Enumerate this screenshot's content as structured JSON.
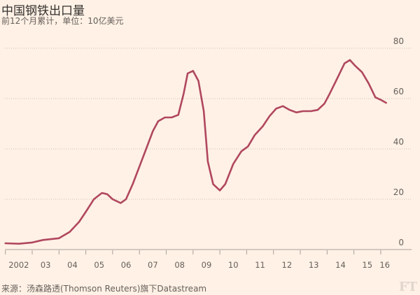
{
  "chart_data": {
    "type": "line",
    "title": "中国钢铁出口量",
    "subtitle": "前12个月累计，单位：10亿美元",
    "source": "来源：汤森路透(Thomson Reuters)旗下Datastream",
    "logo": "FT",
    "xlabel": "",
    "ylabel": "",
    "ylim": [
      0,
      80
    ],
    "xlim": [
      2002,
      2016.4
    ],
    "yticks": [
      0,
      20,
      40,
      60,
      80
    ],
    "xticks": [
      {
        "year": 2002.5,
        "label": "2002"
      },
      {
        "year": 2003.5,
        "label": "03"
      },
      {
        "year": 2004.5,
        "label": "04"
      },
      {
        "year": 2005.5,
        "label": "05"
      },
      {
        "year": 2006.5,
        "label": "06"
      },
      {
        "year": 2007.5,
        "label": "07"
      },
      {
        "year": 2008.5,
        "label": "08"
      },
      {
        "year": 2009.5,
        "label": "09"
      },
      {
        "year": 2010.5,
        "label": "10"
      },
      {
        "year": 2011.5,
        "label": "11"
      },
      {
        "year": 2012.5,
        "label": "12"
      },
      {
        "year": 2013.5,
        "label": "13"
      },
      {
        "year": 2014.5,
        "label": "14"
      },
      {
        "year": 2015.5,
        "label": "15"
      },
      {
        "year": 2016.15,
        "label": "16"
      }
    ],
    "grid": true,
    "color": "#b0475e",
    "series": [
      {
        "name": "钢铁出口量",
        "x": [
          2002.0,
          2002.5,
          2003.0,
          2003.4,
          2004.0,
          2004.4,
          2004.75,
          2005.0,
          2005.3,
          2005.6,
          2005.8,
          2006.0,
          2006.3,
          2006.5,
          2006.75,
          2007.0,
          2007.25,
          2007.5,
          2007.7,
          2007.95,
          2008.2,
          2008.45,
          2008.65,
          2008.8,
          2009.0,
          2009.2,
          2009.4,
          2009.55,
          2009.75,
          2010.0,
          2010.2,
          2010.5,
          2010.8,
          2011.05,
          2011.3,
          2011.6,
          2011.85,
          2012.1,
          2012.35,
          2012.6,
          2012.85,
          2013.1,
          2013.4,
          2013.65,
          2013.9,
          2014.1,
          2014.4,
          2014.65,
          2014.85,
          2015.05,
          2015.3,
          2015.55,
          2015.8,
          2016.0,
          2016.2
        ],
        "values": [
          2.5,
          2.3,
          2.8,
          3.8,
          4.5,
          7,
          11,
          15,
          20,
          22.5,
          22,
          20,
          18.5,
          20,
          26,
          33,
          40,
          47,
          51,
          52.5,
          52.5,
          53.5,
          62,
          70,
          71,
          67,
          55,
          35,
          26,
          23.5,
          26,
          34,
          39,
          41,
          45.5,
          49,
          53,
          56,
          57,
          55.5,
          54.5,
          55,
          55,
          55.5,
          58,
          62,
          68.5,
          74,
          75.3,
          73,
          70.5,
          66,
          60.5,
          59.5,
          58.3
        ]
      }
    ]
  }
}
